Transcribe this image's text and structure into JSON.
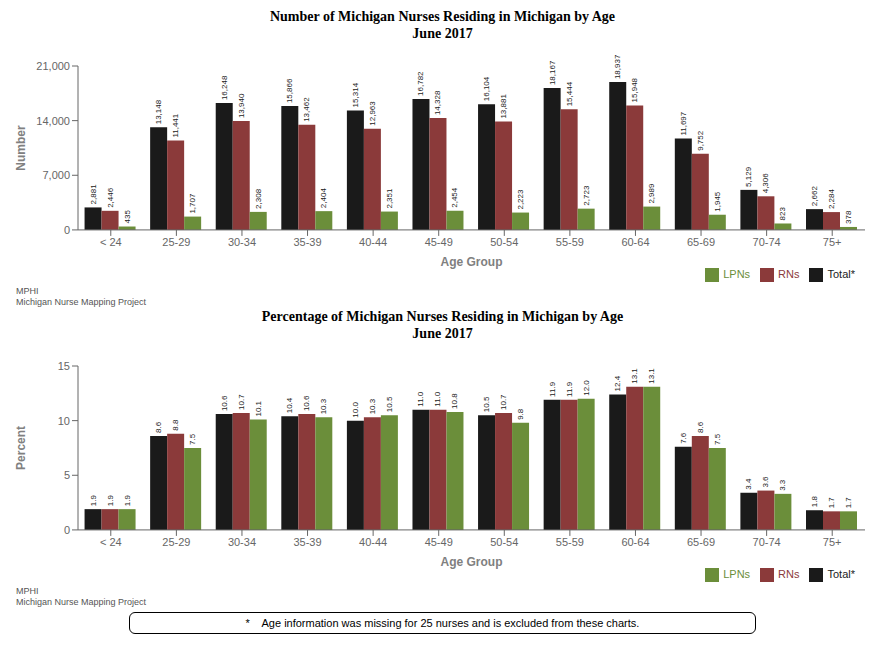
{
  "chart_data": [
    {
      "type": "bar",
      "title": "Number of Michigan Nurses Residing in Michigan by Age",
      "subtitle": "June 2017",
      "x_label": "Age Group",
      "y_label": "Number",
      "categories": [
        "< 24",
        "25-29",
        "30-34",
        "35-39",
        "40-44",
        "45-49",
        "50-54",
        "55-59",
        "60-64",
        "65-69",
        "70-74",
        "75+"
      ],
      "series": [
        {
          "name": "Total*",
          "color": "#1a1a1a",
          "values": [
            2881,
            13148,
            16248,
            15866,
            15314,
            16782,
            16104,
            18167,
            18937,
            11697,
            5129,
            2662
          ],
          "value_labels": [
            "2,881",
            "13,148",
            "16,248",
            "15,866",
            "15,314",
            "16,782",
            "16,104",
            "18,167",
            "18,937",
            "11,697",
            "5,129",
            "2,662"
          ]
        },
        {
          "name": "RNs",
          "color": "#8B3A3A",
          "values": [
            2446,
            11441,
            13940,
            13462,
            12963,
            14328,
            13881,
            15444,
            15948,
            9752,
            4306,
            2284
          ],
          "value_labels": [
            "2,446",
            "11,441",
            "13,940",
            "13,462",
            "12,963",
            "14,328",
            "13,881",
            "15,444",
            "15,948",
            "9,752",
            "4,306",
            "2,284"
          ]
        },
        {
          "name": "LPNs",
          "color": "#6B8E3A",
          "values": [
            435,
            1707,
            2308,
            2404,
            2351,
            2454,
            2223,
            2723,
            2989,
            1945,
            823,
            378
          ],
          "value_labels": [
            "435",
            "1,707",
            "2,308",
            "2,404",
            "2,351",
            "2,454",
            "2,223",
            "2,723",
            "2,989",
            "1,945",
            "823",
            "378"
          ]
        }
      ],
      "ylim": [
        0,
        21000
      ],
      "yticks": [
        0,
        {
          "value": 7000,
          "label": "7,000"
        },
        {
          "value": 14000,
          "label": "14,000"
        },
        {
          "value": 21000,
          "label": "21,000"
        }
      ],
      "grid": false,
      "legend": "lower right",
      "data_labels": true,
      "annotations": [
        "MPHI\nMichigan Nurse Mapping Project"
      ]
    },
    {
      "type": "bar",
      "title": "Percentage of Michigan Nurses Residing in Michigan by Age",
      "subtitle": "June 2017",
      "x_label": "Age Group",
      "y_label": "Percent",
      "categories": [
        "< 24",
        "25-29",
        "30-34",
        "35-39",
        "40-44",
        "45-49",
        "50-54",
        "55-59",
        "60-64",
        "65-69",
        "70-74",
        "75+"
      ],
      "series": [
        {
          "name": "Total*",
          "color": "#1a1a1a",
          "values": [
            1.9,
            8.6,
            10.6,
            10.4,
            10.0,
            11.0,
            10.5,
            11.9,
            12.4,
            7.6,
            3.4,
            1.8
          ],
          "value_labels": [
            "1.9",
            "8.6",
            "10.6",
            "10.4",
            "10.0",
            "11.0",
            "10.5",
            "11.9",
            "12.4",
            "7.6",
            "3.4",
            "1.8"
          ]
        },
        {
          "name": "RNs",
          "color": "#8B3A3A",
          "values": [
            1.9,
            8.8,
            10.7,
            10.6,
            10.3,
            11.0,
            10.7,
            11.9,
            13.1,
            8.6,
            3.6,
            1.7
          ],
          "value_labels": [
            "1.9",
            "8.8",
            "10.7",
            "10.6",
            "10.3",
            "11.0",
            "10.7",
            "11.9",
            "13.1",
            "8.6",
            "3.6",
            "1.7"
          ]
        },
        {
          "name": "LPNs",
          "color": "#6B8E3A",
          "values": [
            1.9,
            7.5,
            10.1,
            10.3,
            10.5,
            10.8,
            9.8,
            12.0,
            13.1,
            7.5,
            3.3,
            1.7
          ],
          "value_labels": [
            "1.9",
            "7.5",
            "10.1",
            "10.3",
            "10.5",
            "10.8",
            "9.8",
            "12.0",
            "13.1",
            "7.5",
            "3.3",
            "1.7"
          ]
        }
      ],
      "ylim": [
        0,
        15
      ],
      "yticks": [
        0,
        5,
        10,
        15
      ],
      "grid": false,
      "legend": "lower right",
      "data_labels": true,
      "annotations": [
        "MPHI\nMichigan Nurse Mapping Project",
        "*    Age information was missing for 25 nurses and is excluded from these charts."
      ]
    }
  ]
}
